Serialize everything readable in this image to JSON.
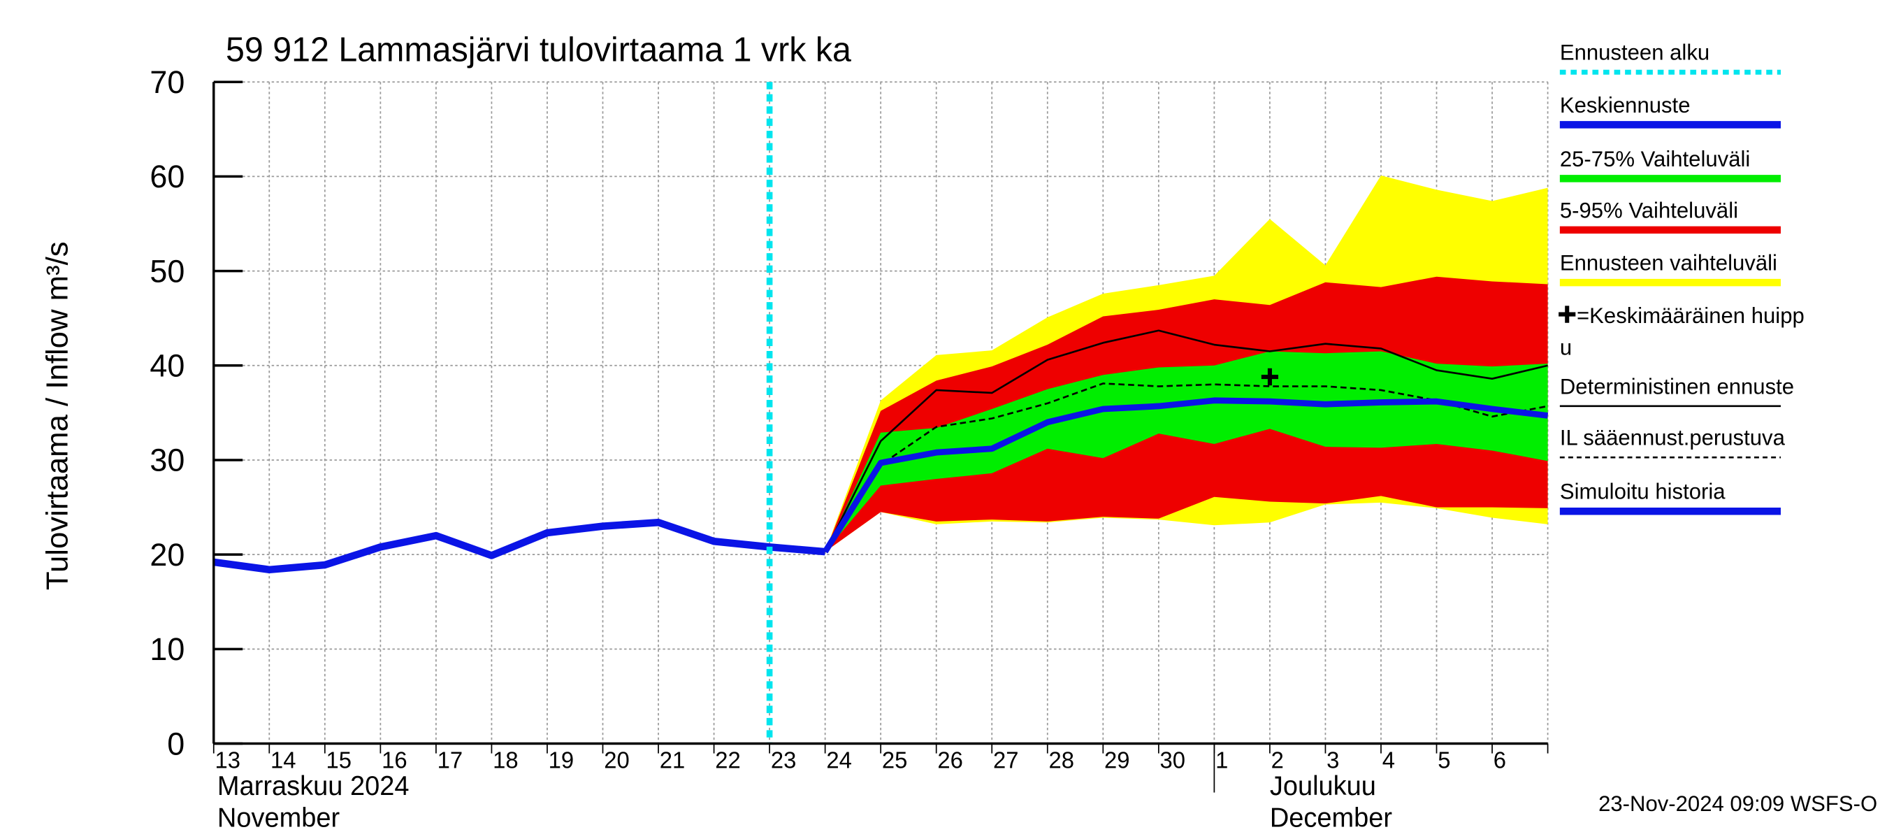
{
  "chart_data": {
    "type": "line",
    "title": "59 912 Lammasjärvi tulovirtaama 1 vrk ka",
    "y_label": "Tulovirtaama / Inflow    m³/s",
    "categories": [
      "13",
      "14",
      "15",
      "16",
      "17",
      "18",
      "19",
      "20",
      "21",
      "22",
      "23",
      "24",
      "25",
      "26",
      "27",
      "28",
      "29",
      "30",
      "1",
      "2",
      "3",
      "4",
      "5",
      "6",
      null
    ],
    "month_labels": [
      {
        "index": 0,
        "lines": [
          "Marraskuu 2024",
          "November"
        ]
      },
      {
        "index": 18,
        "lines": [
          "Joulukuu",
          "December"
        ]
      }
    ],
    "ylim": [
      0,
      70
    ],
    "yticks": [
      0,
      10,
      20,
      30,
      40,
      50,
      60,
      70
    ],
    "grid": true,
    "timestamp": "23-Nov-2024 09:09 WSFS-O",
    "series": [
      {
        "name": "Ennusteen alku",
        "kind": "vline",
        "color": "#00e5ee",
        "x": 10
      },
      {
        "name": "Keskiennuste",
        "kind": "line",
        "color": "#0a14e6",
        "width": 5,
        "values": [
          null,
          null,
          null,
          null,
          null,
          null,
          null,
          null,
          null,
          null,
          null,
          20.3,
          29.7,
          30.8,
          31.2,
          34,
          35.4,
          35.7,
          36.3,
          36.2,
          35.9,
          36.1,
          36.2,
          35.4,
          34.7
        ]
      },
      {
        "name": "25-75% Vaihteluväli",
        "kind": "band",
        "color": "#00ee00",
        "high": [
          null,
          null,
          null,
          null,
          null,
          null,
          null,
          null,
          null,
          null,
          null,
          20.3,
          32.9,
          33.4,
          35.4,
          37.5,
          39,
          39.8,
          40,
          41.5,
          41.3,
          41.5,
          40.2,
          39.9,
          40.2
        ],
        "low": [
          null,
          null,
          null,
          null,
          null,
          null,
          null,
          null,
          null,
          null,
          null,
          20.3,
          27.3,
          28,
          28.6,
          31.2,
          30.2,
          32.8,
          31.7,
          33.3,
          31.4,
          31.3,
          31.7,
          31,
          29.9
        ]
      },
      {
        "name": "5-95% Vaihteluväli",
        "kind": "band",
        "color": "#ee0000",
        "high": [
          null,
          null,
          null,
          null,
          null,
          null,
          null,
          null,
          null,
          null,
          null,
          20.3,
          35.2,
          38.4,
          39.9,
          42.2,
          45.2,
          45.9,
          47,
          46.4,
          48.8,
          48.3,
          49.4,
          48.9,
          48.6
        ],
        "low": [
          null,
          null,
          null,
          null,
          null,
          null,
          null,
          null,
          null,
          null,
          null,
          20.3,
          24.5,
          23.5,
          23.7,
          23.5,
          24,
          23.8,
          26.1,
          25.6,
          25.4,
          26.2,
          25,
          25,
          24.9
        ]
      },
      {
        "name": "Ennusteen vaihteluväli",
        "kind": "band",
        "color": "#ffff00",
        "high": [
          null,
          null,
          null,
          null,
          null,
          null,
          null,
          null,
          null,
          null,
          null,
          20.3,
          36.3,
          41.1,
          41.6,
          45.1,
          47.6,
          48.5,
          49.5,
          55.5,
          50.6,
          60.1,
          58.6,
          57.4,
          58.8
        ],
        "low": [
          null,
          null,
          null,
          null,
          null,
          null,
          null,
          null,
          null,
          null,
          null,
          20.3,
          24.5,
          23.2,
          23.5,
          23.4,
          23.9,
          23.7,
          23.1,
          23.4,
          25.3,
          25.5,
          24.9,
          23.9,
          23.2
        ]
      },
      {
        "name": [
          "=Keskimääräinen huipp",
          "u"
        ],
        "kind": "marker",
        "color": "#000000",
        "x": 19,
        "value": 38.8
      },
      {
        "name": "Deterministinen ennuste",
        "kind": "line",
        "color": "#000000",
        "width": 1.5,
        "values": [
          null,
          null,
          null,
          null,
          null,
          null,
          null,
          null,
          null,
          null,
          null,
          20.3,
          32,
          37.4,
          37.1,
          40.6,
          42.4,
          43.7,
          42.2,
          41.5,
          42.3,
          41.8,
          39.5,
          38.6,
          40
        ]
      },
      {
        "name": "IL sääennust.perustuva",
        "kind": "dashed",
        "color": "#000000",
        "width": 1.5,
        "values": [
          null,
          null,
          null,
          null,
          null,
          null,
          null,
          null,
          null,
          null,
          null,
          20.3,
          29.5,
          33.5,
          34.4,
          36,
          38.1,
          37.8,
          38,
          37.8,
          37.8,
          37.4,
          36.3,
          34.6,
          35.7
        ]
      },
      {
        "name": "Simuloitu historia",
        "kind": "line",
        "color": "#0a14e6",
        "width": 6,
        "values": [
          19.2,
          18.4,
          18.9,
          20.8,
          22,
          19.9,
          22.3,
          23,
          23.4,
          21.4,
          20.8,
          20.3,
          null,
          null,
          null,
          null,
          null,
          null,
          null,
          null,
          null,
          null,
          null,
          null,
          null
        ]
      }
    ]
  }
}
